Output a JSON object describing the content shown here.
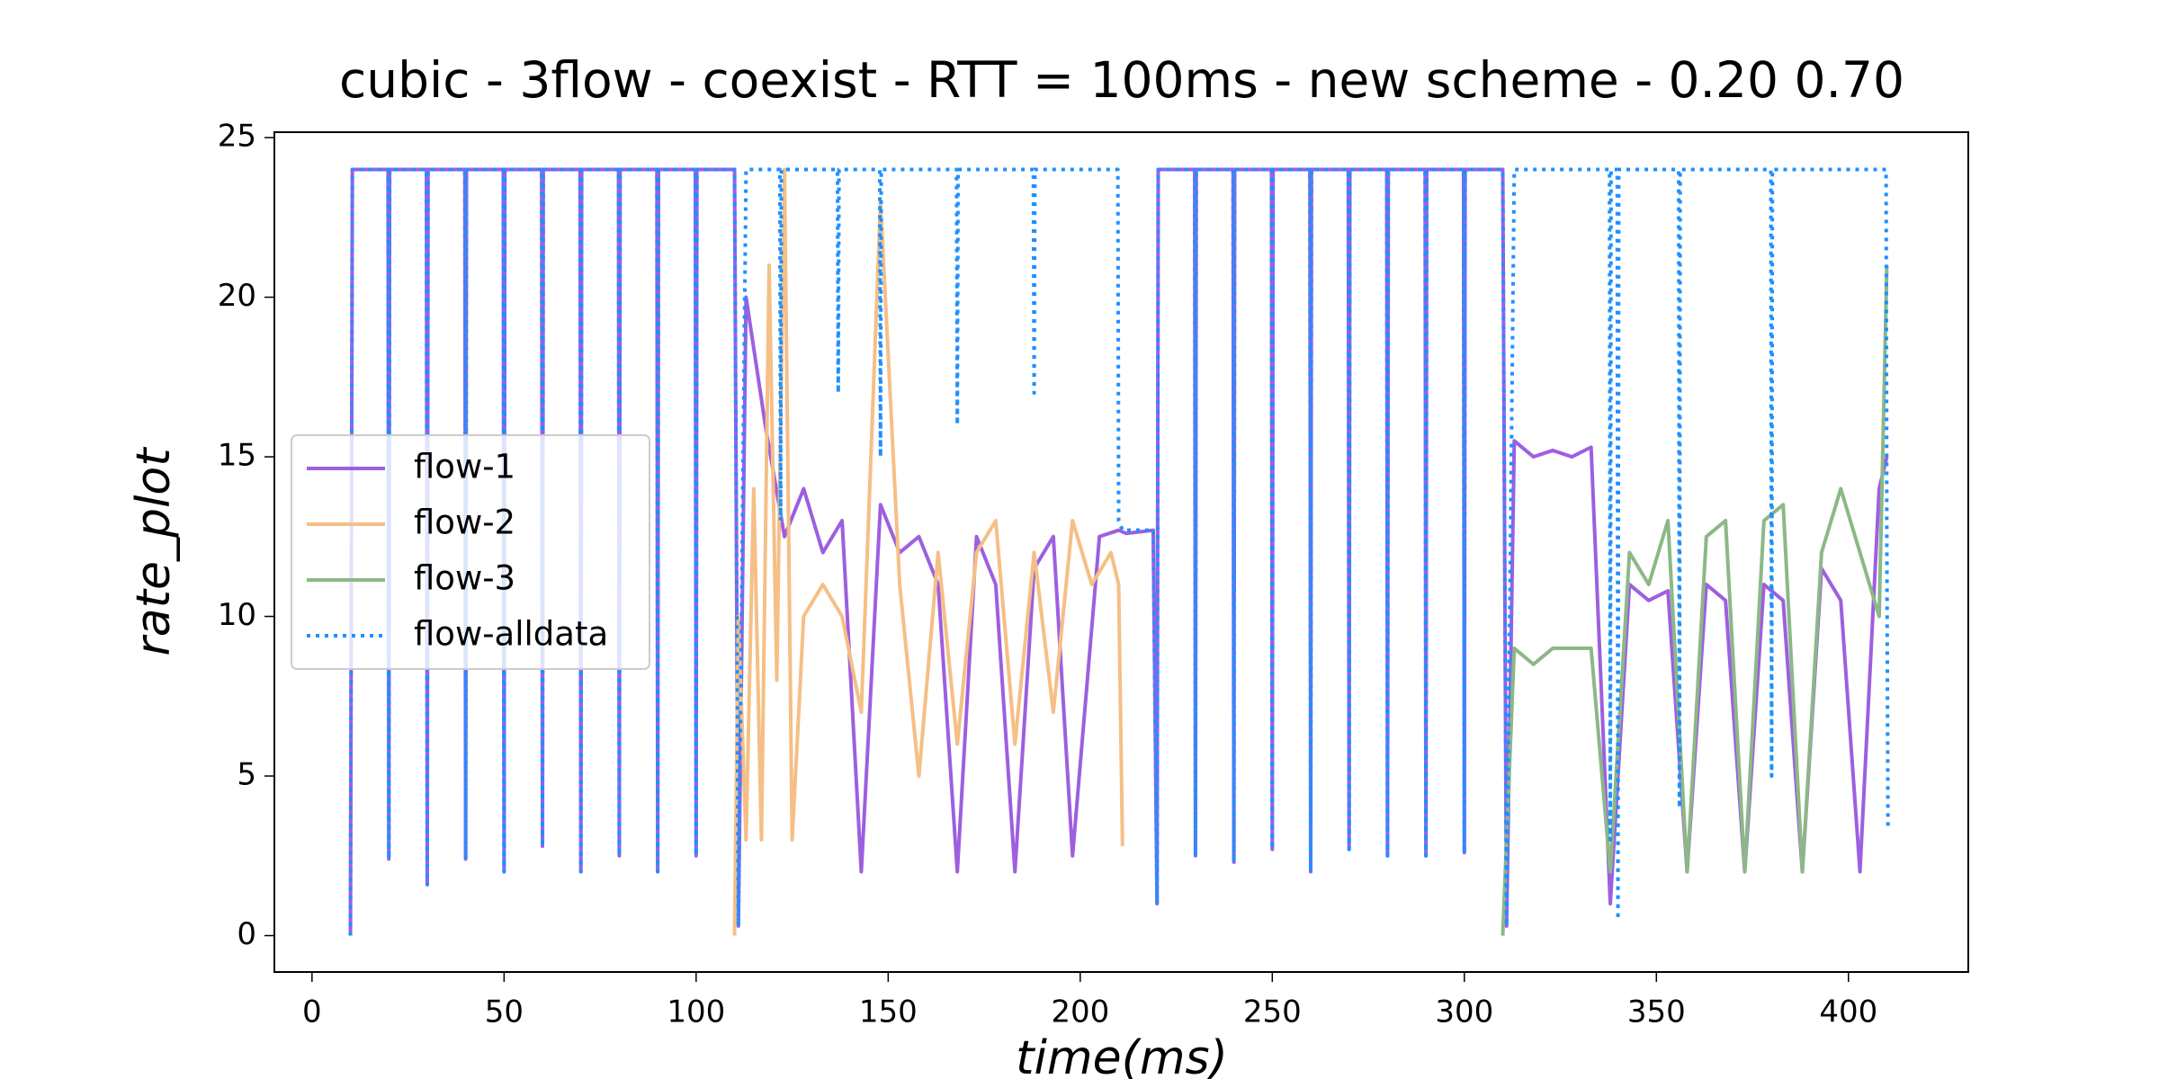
{
  "chart_data": {
    "type": "line",
    "title": "cubic - 3flow - coexist - RTT = 100ms - new scheme - 0.20 0.70",
    "x_label": "time(ms)",
    "y_label": "rate_plot",
    "xlim": [
      -9.8,
      431.2
    ],
    "ylim": [
      -1.14,
      25.17
    ],
    "xticks": [
      0,
      50,
      100,
      150,
      200,
      250,
      300,
      350,
      400
    ],
    "yticks": [
      0,
      5,
      10,
      15,
      20,
      25
    ],
    "legend": "center left",
    "series": [
      {
        "name": "flow-1",
        "color": "#9d5fe0",
        "style": "solid",
        "x": [
          10,
          10.5,
          19.8,
          20,
          20.2,
          29.8,
          30,
          30.2,
          39.8,
          40,
          40.2,
          49.8,
          50,
          50.2,
          59.8,
          60,
          60.2,
          69.8,
          70,
          70.2,
          79.8,
          80,
          80.2,
          89.8,
          90,
          90.2,
          99.8,
          100,
          100.2,
          110,
          111,
          113,
          118,
          123,
          128,
          133,
          138,
          143,
          148,
          153,
          158,
          163,
          168,
          173,
          178,
          183,
          188,
          193,
          198,
          205,
          210,
          212,
          219,
          220,
          220.3,
          229.8,
          230,
          230.2,
          239.8,
          240,
          240.2,
          249.8,
          250,
          250.2,
          259.8,
          260,
          260.2,
          269.8,
          270,
          270.2,
          279.8,
          280,
          280.2,
          289.8,
          290,
          290.2,
          299.8,
          300,
          300.2,
          310,
          311,
          313,
          318,
          323,
          328,
          333,
          338,
          343,
          348,
          353,
          358,
          363,
          368,
          373,
          378,
          383,
          388,
          393,
          398,
          403,
          408,
          410
        ],
        "values": [
          0,
          24,
          24,
          2.4,
          24,
          24,
          1.6,
          24,
          24,
          2.4,
          24,
          24,
          2.0,
          24,
          24,
          2.8,
          24,
          24,
          2.0,
          24,
          24,
          2.5,
          24,
          24,
          2.0,
          24,
          24,
          2.5,
          24,
          24,
          0.3,
          20,
          16,
          12.5,
          14,
          12,
          13,
          2,
          13.5,
          12,
          12.5,
          11,
          2,
          12.5,
          11,
          2,
          11.5,
          12.5,
          2.5,
          12.5,
          12.7,
          12.6,
          12.7,
          1,
          24,
          24,
          2.5,
          24,
          24,
          2.3,
          24,
          24,
          2.7,
          24,
          24,
          2.0,
          24,
          24,
          2.7,
          24,
          24,
          2.5,
          24,
          24,
          2.5,
          24,
          24,
          2.6,
          24,
          24,
          0.3,
          15.5,
          15,
          15.2,
          15,
          15.3,
          1,
          11,
          10.5,
          10.8,
          2,
          11,
          10.5,
          2,
          11,
          10.5,
          2,
          11.5,
          10.5,
          2,
          14,
          15
        ]
      },
      {
        "name": "flow-2",
        "color": "#f5bf86",
        "style": "solid",
        "x": [
          110,
          111,
          113,
          115,
          117,
          119,
          121,
          123,
          125,
          128,
          133,
          138,
          143,
          148,
          153,
          158,
          163,
          168,
          173,
          178,
          183,
          188,
          193,
          198,
          203,
          208,
          210,
          211
        ],
        "values": [
          0,
          10,
          3,
          14,
          3,
          21,
          8,
          24,
          3,
          10,
          11,
          10,
          7,
          23,
          11,
          5,
          12,
          6,
          12,
          13,
          6,
          12,
          7,
          13,
          11,
          12,
          11,
          2.8
        ]
      },
      {
        "name": "flow-3",
        "color": "#8cb887",
        "style": "solid",
        "x": [
          310,
          311,
          313,
          318,
          323,
          328,
          333,
          338,
          343,
          348,
          353,
          358,
          363,
          368,
          373,
          378,
          383,
          388,
          393,
          398,
          403,
          408,
          410
        ],
        "values": [
          0,
          3,
          9,
          8.5,
          9,
          9,
          9,
          2,
          12,
          11,
          13,
          2,
          12.5,
          13,
          2,
          13,
          13.5,
          2,
          12,
          14,
          12,
          10,
          21
        ]
      },
      {
        "name": "flow-alldata",
        "color": "#1e90ff",
        "style": "dotted",
        "x": [
          10,
          10.5,
          19.8,
          20,
          20.2,
          29.8,
          30,
          30.2,
          39.8,
          40,
          40.2,
          49.8,
          50,
          50.2,
          59.8,
          60,
          60.2,
          69.8,
          70,
          70.2,
          79.8,
          80,
          80.2,
          89.8,
          90,
          90.2,
          99.8,
          100,
          100.2,
          110,
          111,
          113,
          121.8,
          122,
          122.2,
          136.8,
          137,
          137.2,
          147.8,
          148,
          148.2,
          167.8,
          168,
          168.2,
          187.8,
          188,
          188.2,
          209.8,
          210,
          211,
          219,
          220,
          220.3,
          229.8,
          230,
          230.2,
          239.8,
          240,
          240.2,
          249.8,
          250,
          250.2,
          259.8,
          260,
          260.2,
          269.8,
          270,
          270.2,
          279.8,
          280,
          280.2,
          289.8,
          290,
          290.2,
          299.8,
          300,
          300.2,
          310,
          311,
          313,
          337.8,
          338,
          338.2,
          339.8,
          340,
          340.2,
          355.8,
          356,
          356.2,
          379.8,
          380,
          380.2,
          409.8,
          410,
          410.3
        ],
        "values": [
          0,
          24,
          24,
          2.4,
          24,
          24,
          1.6,
          24,
          24,
          2.4,
          24,
          24,
          2.0,
          24,
          24,
          2.8,
          24,
          24,
          2.0,
          24,
          24,
          2.5,
          24,
          24,
          2.0,
          24,
          24,
          2.5,
          24,
          24,
          0.3,
          24,
          24,
          13,
          24,
          24,
          17,
          24,
          24,
          15,
          24,
          24,
          16,
          24,
          24,
          17,
          24,
          24,
          13,
          12.7,
          12.7,
          1,
          24,
          24,
          2.5,
          24,
          24,
          2.3,
          24,
          24,
          2.7,
          24,
          24,
          2.0,
          24,
          24,
          2.7,
          24,
          24,
          2.5,
          24,
          24,
          2.5,
          24,
          24,
          2.6,
          24,
          24,
          0.3,
          24,
          24,
          3,
          24,
          24,
          0.5,
          24,
          24,
          4,
          24,
          24,
          5,
          24,
          24,
          12,
          3.3
        ]
      }
    ]
  }
}
